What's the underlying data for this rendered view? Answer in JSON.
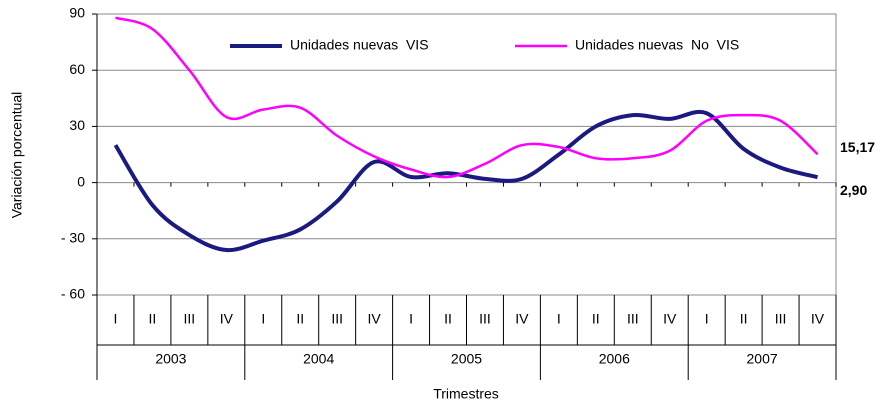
{
  "chart_data": {
    "type": "line",
    "y_label": "Variación porcentual",
    "x_label": "Trimestres",
    "categories": [
      "I",
      "II",
      "III",
      "IV",
      "I",
      "II",
      "III",
      "IV",
      "I",
      "II",
      "III",
      "IV",
      "I",
      "II",
      "III",
      "IV",
      "I",
      "II",
      "III",
      "IV"
    ],
    "group_labels": [
      "2003",
      "2004",
      "2005",
      "2006",
      "2007"
    ],
    "series": [
      {
        "name": "Unidades nuevas  VIS",
        "color": "#1a1a80",
        "values": [
          20,
          -12,
          -28,
          -36,
          -31,
          -25,
          -10,
          11,
          3,
          5,
          2,
          2,
          15,
          30,
          36,
          34,
          37,
          18,
          8,
          2.9
        ],
        "value_labels": {
          "19": "2,90"
        }
      },
      {
        "name": "Unidades nuevas  No  VIS",
        "color": "#ff00ff",
        "values": [
          88,
          82,
          60,
          35,
          39,
          40,
          25,
          14,
          7,
          3,
          10,
          20,
          19,
          13,
          13,
          17,
          33,
          36,
          33,
          15.17
        ],
        "value_labels": {
          "19": "15,17"
        }
      }
    ],
    "ylim": [
      -60,
      90
    ],
    "yticks": [
      90,
      60,
      30,
      0,
      {
        "value": -30,
        "label": "- 30"
      },
      {
        "value": -60,
        "label": "- 60"
      }
    ],
    "grid": true
  }
}
